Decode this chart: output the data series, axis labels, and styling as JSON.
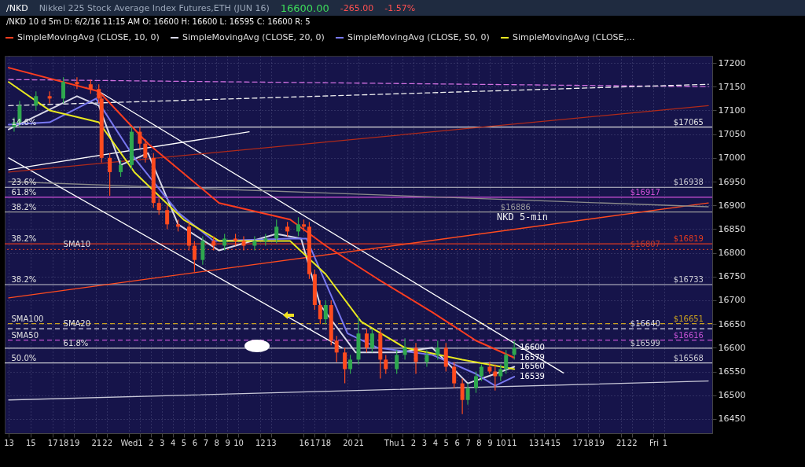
{
  "chart_data": {
    "type": "candlestick",
    "title": "Nikkei 225 Stock Average Index Futures,ETH (JUN 16)",
    "subtitle": "/NKD 10 d 5m  D: 6/2/16 11:15 AM  O: 16600  H: 16600  L: 16595  C: 16600  R: 5",
    "x": [
      "--05-31T13:30",
      "--05-31T14:00",
      "--05-31T15:30",
      "--05-31T16:45",
      "--05-31T18:00",
      "--05-31T19:15",
      "--05-31T20:30",
      "--05-31T21:15",
      "--05-31T21:30",
      "--05-31T22:15",
      "--05-31T23:15",
      "--06-01T00:15",
      "--06-01T01:00",
      "--06-01T01:30",
      "--06-01T02:15",
      "--06-01T02:45",
      "--06-01T03:30",
      "--06-01T04:30",
      "--06-01T05:30",
      "--06-01T06:00",
      "--06-01T06:45",
      "--06-01T07:45",
      "--06-01T08:45",
      "--06-01T09:45",
      "--06-01T10:30",
      "--06-01T11:30",
      "--06-01T12:30",
      "--06-01T13:30",
      "--06-01T14:30",
      "--06-01T15:30",
      "--06-01T16:00",
      "--06-01T16:30",
      "--06-01T17:00",
      "--06-01T17:30",
      "--06-01T18:00",
      "--06-01T18:30",
      "--06-01T19:00",
      "--06-01T19:45",
      "--06-01T20:15",
      "--06-01T21:00",
      "--06-01T21:45",
      "--06-01T22:15",
      "--06-01T23:00",
      "--06-01T23:30",
      "--06-02T00:30",
      "--06-02T01:15",
      "--06-02T02:15",
      "--06-02T03:15",
      "--06-02T04:15",
      "--06-02T05:00",
      "--06-02T05:45",
      "--06-02T06:30",
      "--06-02T07:00",
      "--06-02T07:45",
      "--06-02T08:15",
      "--06-02T09:00",
      "--06-02T09:30",
      "--06-02T10:00",
      "--06-02T10:30",
      "--06-02T11:15"
    ],
    "ohlc": [
      [
        17065,
        17085,
        17055,
        17075
      ],
      [
        17075,
        17120,
        17065,
        17110
      ],
      [
        17110,
        17140,
        17100,
        17130
      ],
      [
        17130,
        17140,
        17115,
        17125
      ],
      [
        17125,
        17170,
        17115,
        17160
      ],
      [
        17160,
        17170,
        17145,
        17155
      ],
      [
        17155,
        17165,
        17135,
        17145
      ],
      [
        17145,
        17155,
        17115,
        17125
      ],
      [
        17125,
        17135,
        16990,
        17000
      ],
      [
        17000,
        17010,
        16920,
        16970
      ],
      [
        16970,
        16995,
        16960,
        16985
      ],
      [
        16985,
        17065,
        16975,
        17055
      ],
      [
        17055,
        17065,
        17020,
        17030
      ],
      [
        17030,
        17040,
        16990,
        17000
      ],
      [
        17000,
        17010,
        16895,
        16905
      ],
      [
        16905,
        16915,
        16880,
        16890
      ],
      [
        16890,
        16900,
        16850,
        16860
      ],
      [
        16860,
        16870,
        16845,
        16855
      ],
      [
        16855,
        16865,
        16805,
        16815
      ],
      [
        16815,
        16825,
        16760,
        16785
      ],
      [
        16785,
        16835,
        16775,
        16825
      ],
      [
        16825,
        16835,
        16805,
        16815
      ],
      [
        16815,
        16840,
        16805,
        16830
      ],
      [
        16830,
        16840,
        16815,
        16825
      ],
      [
        16825,
        16835,
        16805,
        16815
      ],
      [
        16815,
        16835,
        16805,
        16825
      ],
      [
        16825,
        16840,
        16815,
        16830
      ],
      [
        16830,
        16870,
        16820,
        16855
      ],
      [
        16855,
        16865,
        16835,
        16845
      ],
      [
        16845,
        16875,
        16835,
        16860
      ],
      [
        16860,
        16870,
        16845,
        16855
      ],
      [
        16855,
        16865,
        16745,
        16755
      ],
      [
        16755,
        16765,
        16680,
        16690
      ],
      [
        16690,
        16700,
        16650,
        16660
      ],
      [
        16660,
        16700,
        16650,
        16690
      ],
      [
        16690,
        16700,
        16605,
        16615
      ],
      [
        16615,
        16625,
        16570,
        16590
      ],
      [
        16590,
        16600,
        16525,
        16555
      ],
      [
        16555,
        16585,
        16545,
        16575
      ],
      [
        16575,
        16665,
        16565,
        16630
      ],
      [
        16630,
        16640,
        16590,
        16600
      ],
      [
        16600,
        16640,
        16590,
        16630
      ],
      [
        16630,
        16640,
        16535,
        16575
      ],
      [
        16575,
        16585,
        16545,
        16555
      ],
      [
        16555,
        16595,
        16545,
        16585
      ],
      [
        16585,
        16620,
        16575,
        16600
      ],
      [
        16600,
        16610,
        16545,
        16570
      ],
      [
        16570,
        16595,
        16560,
        16585
      ],
      [
        16585,
        16615,
        16575,
        16600
      ],
      [
        16600,
        16610,
        16550,
        16560
      ],
      [
        16560,
        16570,
        16515,
        16525
      ],
      [
        16525,
        16535,
        16460,
        16490
      ],
      [
        16490,
        16525,
        16480,
        16515
      ],
      [
        16515,
        16550,
        16505,
        16540
      ],
      [
        16540,
        16565,
        16530,
        16560
      ],
      [
        16560,
        16570,
        16545,
        16550
      ],
      [
        16550,
        16565,
        16510,
        16540
      ],
      [
        16540,
        16565,
        16530,
        16555
      ],
      [
        16555,
        16595,
        16545,
        16585
      ],
      [
        16585,
        16615,
        16575,
        16600
      ]
    ],
    "colors": [
      "#2fa84f",
      "#2fa84f",
      "#2fa84f",
      "#ff4b1f",
      "#2fa84f",
      "#ff4b1f",
      "#ff4b1f",
      "#ff4b1f",
      "#ff4b1f",
      "#ff4b1f",
      "#2fa84f",
      "#2fa84f",
      "#ff4b1f",
      "#ff4b1f",
      "#ff4b1f",
      "#ff4b1f",
      "#ff4b1f",
      "#ff4b1f",
      "#ff4b1f",
      "#ff4b1f",
      "#2fa84f",
      "#ff4b1f",
      "#2fa84f",
      "#ff4b1f",
      "#ff4b1f",
      "#2fa84f",
      "#2fa84f",
      "#2fa84f",
      "#ff4b1f",
      "#2fa84f",
      "#ff4b1f",
      "#ff4b1f",
      "#ff4b1f",
      "#ff4b1f",
      "#2fa84f",
      "#ff4b1f",
      "#ff4b1f",
      "#ff4b1f",
      "#2fa84f",
      "#2fa84f",
      "#ff4b1f",
      "#2fa84f",
      "#ff4b1f",
      "#ff4b1f",
      "#2fa84f",
      "#2fa84f",
      "#ff4b1f",
      "#2fa84f",
      "#2fa84f",
      "#ff4b1f",
      "#ff4b1f",
      "#ff4b1f",
      "#2fa84f",
      "#2fa84f",
      "#2fa84f",
      "#ff4b1f",
      "#ff4b1f",
      "#2fa84f",
      "#2fa84f",
      "#2fa84f"
    ],
    "series": [
      {
        "type": "line",
        "name": "SimpleMovingAvg (CLOSE, 10, 0)",
        "color": "#ff3d1f",
        "x": [
          "--05-31T13:00",
          "--05-31T21:15",
          "--06-01T01:45",
          "--06-01T08:15",
          "--06-01T14:45",
          "--06-01T18:00",
          "--06-01T22:45",
          "--06-02T03:45",
          "--06-02T07:45",
          "--06-02T11:15"
        ],
        "values": [
          17190,
          17140,
          17030,
          16905,
          16870,
          16815,
          16745,
          16675,
          16615,
          16579
        ]
      },
      {
        "type": "line",
        "name": "SimpleMovingAvg (CLOSE, 20, 0)",
        "color": "#d8d8e8",
        "x": [
          "--05-31T13:00",
          "--05-31T19:15",
          "--05-31T21:15",
          "--05-31T23:15",
          "--06-01T01:45",
          "--06-01T04:30",
          "--06-01T08:15",
          "--06-01T13:30",
          "--06-01T15:45",
          "--06-01T17:30",
          "--06-01T20:45",
          "--06-02T00:30",
          "--06-02T03:45",
          "--06-02T07:00",
          "--06-02T09:30",
          "--06-02T11:15"
        ],
        "values": [
          17060,
          17130,
          17110,
          16985,
          17010,
          16860,
          16805,
          16840,
          16830,
          16690,
          16590,
          16590,
          16600,
          16525,
          16545,
          16560
        ]
      },
      {
        "type": "line",
        "name": "SimpleMovingAvg (CLOSE, 50, 0)",
        "color": "#7878f0",
        "x": [
          "--05-31T13:00",
          "--05-31T16:45",
          "--05-31T21:00",
          "--06-01T00:30",
          "--06-01T04:30",
          "--06-01T07:45",
          "--06-01T14:45",
          "--06-01T16:15",
          "--06-01T20:00",
          "--06-01T22:45",
          "--06-02T03:45",
          "--06-02T07:45",
          "--06-02T09:30",
          "--06-02T11:15"
        ],
        "values": [
          17070,
          17075,
          17125,
          17000,
          16885,
          16825,
          16830,
          16830,
          16630,
          16600,
          16585,
          16545,
          16520,
          16539
        ]
      },
      {
        "type": "line",
        "name": "SimpleMovingAvg (CLOSE,...",
        "color": "#e8e820",
        "x": [
          "--05-31T13:00",
          "--05-31T16:45",
          "--05-31T21:15",
          "--06-01T00:30",
          "--06-01T05:00",
          "--06-01T08:15",
          "--06-01T14:45",
          "--06-01T18:00",
          "--06-01T21:15",
          "--06-02T01:15",
          "--06-02T06:30",
          "--06-02T11:15"
        ],
        "values": [
          17160,
          17100,
          17075,
          16970,
          16870,
          16825,
          16825,
          16755,
          16655,
          16600,
          16575,
          16555
        ]
      },
      {
        "type": "line",
        "color": "#ffffff",
        "x": [
          "--05-31T21:15",
          "--06-02T15:45"
        ],
        "values": [
          17140,
          16547
        ]
      },
      {
        "type": "line",
        "color": "#ffffff",
        "x": [
          "--05-31T13:00",
          "--06-01T19:30"
        ],
        "values": [
          17000,
          16600
        ]
      },
      {
        "type": "line",
        "color": "#ffffff",
        "x": [
          "--05-31T13:00",
          "--06-01T11:00"
        ],
        "values": [
          16975,
          17055
        ]
      },
      {
        "type": "line",
        "color": "#c8c8d8",
        "x": [
          "--05-31T13:00",
          "--06-03T05:00"
        ],
        "values": [
          16490,
          16530
        ]
      },
      {
        "type": "line",
        "color": "#ff4b1f",
        "x": [
          "--05-31T13:00",
          "--06-03T05:00"
        ],
        "values": [
          16705,
          16905
        ]
      },
      {
        "type": "line",
        "color": "#b02a1a",
        "x": [
          "--05-31T13:00",
          "--06-03T05:00"
        ],
        "values": [
          16970,
          17110
        ]
      },
      {
        "type": "line",
        "color": "#8a8a8a",
        "x": [
          "--05-31T13:00",
          "--06-03T05:00"
        ],
        "values": [
          16950,
          16897
        ]
      },
      {
        "type": "line",
        "color": "#d070e0",
        "line_style": "dashed",
        "x": [
          "--05-31T13:00",
          "--06-03T05:00"
        ],
        "values": [
          17165,
          17150
        ]
      },
      {
        "type": "line",
        "color": "#f0f0f0",
        "line_style": "dashed",
        "x": [
          "--05-31T13:00",
          "--06-03T05:00"
        ],
        "values": [
          17110,
          17155
        ]
      }
    ],
    "ref_lines": [
      {
        "axis": "y",
        "value": 17065,
        "label": "$17065",
        "color": "#e0e0e0"
      },
      {
        "axis": "y",
        "value": 16938,
        "label": "$16938",
        "color": "#c8c8d0"
      },
      {
        "axis": "y",
        "value": 16917,
        "label": "$16917",
        "color": "#d050d8"
      },
      {
        "axis": "y",
        "value": 16886,
        "label": "$16886",
        "color": "#9a9a9a"
      },
      {
        "axis": "y",
        "value": 16819,
        "label": "$16819",
        "color": "#e03a20"
      },
      {
        "axis": "y",
        "value": 16807,
        "label": "$16807",
        "color": "#c03a2a",
        "line_style": "dotted"
      },
      {
        "axis": "y",
        "value": 16733,
        "label": "$16733",
        "color": "#c8c8d0"
      },
      {
        "axis": "y",
        "value": 16651,
        "label": "$16651",
        "color": "#c8a020",
        "line_style": "dashed"
      },
      {
        "axis": "y",
        "value": 16640,
        "label": "$16640",
        "color": "#d8d8e8",
        "line_style": "dashed"
      },
      {
        "axis": "y",
        "value": 16616,
        "label": "$16616",
        "color": "#c050d0",
        "line_style": "dashed"
      },
      {
        "axis": "y",
        "value": 16599,
        "label": "$16599",
        "color": "#c8c8d0"
      },
      {
        "axis": "y",
        "value": 16568,
        "label": "$16568",
        "color": "#c8c8d0"
      }
    ],
    "annotations": [
      "/NKD",
      "16600.00",
      "-265.00",
      "-1.57%",
      "NKD 5-min",
      {
        "text": "14.6%",
        "x": "--05-31T13:15",
        "y": 17065
      },
      {
        "text": "23.6%",
        "x": "--05-31T13:15",
        "y": 16938
      },
      {
        "text": "61.8%",
        "x": "--05-31T13:15",
        "y": 16917
      },
      {
        "text": "38.2%",
        "x": "--05-31T13:15",
        "y": 16886
      },
      {
        "text": "38.2%",
        "x": "--05-31T13:15",
        "y": 16819
      },
      {
        "text": "SMA10",
        "x": "--05-31T18:00",
        "y": 16807
      },
      {
        "text": "38.2%",
        "x": "--05-31T13:15",
        "y": 16733
      },
      {
        "text": "SMA100",
        "x": "--05-31T13:15",
        "y": 16651
      },
      {
        "text": "SMA20",
        "x": "--05-31T18:00",
        "y": 16640
      },
      {
        "text": "SMA50",
        "x": "--05-31T13:15",
        "y": 16616
      },
      {
        "text": "61.8%",
        "x": "--05-31T18:00",
        "y": 16599
      },
      {
        "text": "50.0%",
        "x": "--05-31T13:15",
        "y": 16568
      },
      {
        "text": "16600",
        "x": "--06-02T11:15",
        "y": 16600
      },
      {
        "text": "16579",
        "x": "--06-02T11:15",
        "y": 16579
      },
      {
        "text": "16560",
        "x": "--06-02T11:15",
        "y": 16560
      },
      {
        "text": "16539",
        "x": "--06-02T11:15",
        "y": 16539
      }
    ],
    "xlim": [
      "--05-31T13:00",
      "--06-03T05:00"
    ],
    "xticks": [
      {
        "value": "--05-31T13:00",
        "label": "13"
      },
      {
        "value": "--05-31T15:00",
        "label": "15"
      },
      {
        "value": "--05-31T17:00",
        "label": "17"
      },
      {
        "value": "--05-31T18:00",
        "label": "18"
      },
      {
        "value": "--05-31T19:00",
        "label": "19"
      },
      {
        "value": "--05-31T21:00",
        "label": "21"
      },
      {
        "value": "--05-31T22:00",
        "label": "22"
      },
      {
        "value": "--06-01T00:00",
        "label": "Wed"
      },
      {
        "value": "--06-01T01:00",
        "label": "1"
      },
      {
        "value": "--06-01T02:00",
        "label": "2"
      },
      {
        "value": "--06-01T03:00",
        "label": "3"
      },
      {
        "value": "--06-01T04:00",
        "label": "4"
      },
      {
        "value": "--06-01T05:00",
        "label": "5"
      },
      {
        "value": "--06-01T06:00",
        "label": "6"
      },
      {
        "value": "--06-01T07:00",
        "label": "7"
      },
      {
        "value": "--06-01T08:00",
        "label": "8"
      },
      {
        "value": "--06-01T09:00",
        "label": "9"
      },
      {
        "value": "--06-01T10:00",
        "label": "10"
      },
      {
        "value": "--06-01T12:00",
        "label": "12"
      },
      {
        "value": "--06-01T13:00",
        "label": "13"
      },
      {
        "value": "--06-01T16:00",
        "label": "16"
      },
      {
        "value": "--06-01T17:00",
        "label": "17"
      },
      {
        "value": "--06-01T18:00",
        "label": "18"
      },
      {
        "value": "--06-01T20:00",
        "label": "20"
      },
      {
        "value": "--06-01T21:00",
        "label": "21"
      },
      {
        "value": "--06-02T00:00",
        "label": "Thu"
      },
      {
        "value": "--06-02T01:00",
        "label": "1"
      },
      {
        "value": "--06-02T02:00",
        "label": "2"
      },
      {
        "value": "--06-02T03:00",
        "label": "3"
      },
      {
        "value": "--06-02T04:00",
        "label": "4"
      },
      {
        "value": "--06-02T05:00",
        "label": "5"
      },
      {
        "value": "--06-02T06:00",
        "label": "6"
      },
      {
        "value": "--06-02T07:00",
        "label": "7"
      },
      {
        "value": "--06-02T08:00",
        "label": "8"
      },
      {
        "value": "--06-02T09:00",
        "label": "9"
      },
      {
        "value": "--06-02T10:00",
        "label": "10"
      },
      {
        "value": "--06-02T11:00",
        "label": "11"
      },
      {
        "value": "--06-02T13:00",
        "label": "13"
      },
      {
        "value": "--06-02T14:00",
        "label": "14"
      },
      {
        "value": "--06-02T15:00",
        "label": "15"
      },
      {
        "value": "--06-02T17:00",
        "label": "17"
      },
      {
        "value": "--06-02T18:00",
        "label": "18"
      },
      {
        "value": "--06-02T19:00",
        "label": "19"
      },
      {
        "value": "--06-02T21:00",
        "label": "21"
      },
      {
        "value": "--06-02T22:00",
        "label": "22"
      },
      {
        "value": "--06-03T00:00",
        "label": "Fri"
      },
      {
        "value": "--06-03T01:00",
        "label": "1"
      }
    ],
    "ylim": [
      16420,
      17215
    ],
    "yticks": [
      16450,
      16500,
      16550,
      16600,
      16650,
      16700,
      16750,
      16800,
      16850,
      16900,
      16950,
      17000,
      17050,
      17100,
      17150,
      17200
    ],
    "grid": true,
    "legend": "top"
  }
}
